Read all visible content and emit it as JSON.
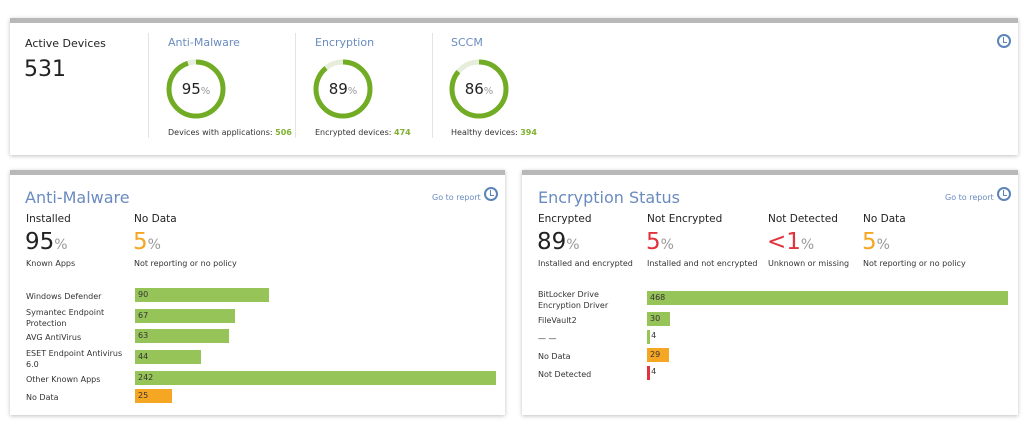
{
  "summary": {
    "active_devices": {
      "label": "Active Devices",
      "value": "531"
    },
    "gauges": [
      {
        "title": "Anti-Malware",
        "value": 95,
        "unit": "%",
        "caption": "Devices with applications:",
        "count": "506"
      },
      {
        "title": "Encryption",
        "value": 89,
        "unit": "%",
        "caption": "Encrypted devices:",
        "count": "474"
      },
      {
        "title": "SCCM",
        "value": 86,
        "unit": "%",
        "caption": "Healthy devices:",
        "count": "394"
      }
    ],
    "clock_icon": "clock-icon"
  },
  "anti_malware": {
    "title": "Anti-Malware",
    "go_to_report": "Go to report",
    "stats": [
      {
        "label": "Installed",
        "value": "95",
        "unit": "%",
        "caption": "Known Apps",
        "color": "#222222"
      },
      {
        "label": "No Data",
        "value": "5",
        "unit": "%",
        "caption": "Not reporting or no policy",
        "color": "#f5a623"
      }
    ],
    "bars": [
      {
        "label": "Windows Defender",
        "value": 90,
        "color": "#97c459"
      },
      {
        "label": "Symantec Endpoint Protection",
        "value": 67,
        "color": "#97c459"
      },
      {
        "label": "AVG AntiVirus",
        "value": 63,
        "color": "#97c459"
      },
      {
        "label": "ESET Endpoint Antivirus 6.0",
        "value": 44,
        "color": "#97c459"
      },
      {
        "label": "Other Known Apps",
        "value": 242,
        "color": "#97c459"
      },
      {
        "label": "No Data",
        "value": 25,
        "color": "#f5a623"
      }
    ]
  },
  "encryption": {
    "title": "Encryption Status",
    "go_to_report": "Go to report",
    "stats": [
      {
        "label": "Encrypted",
        "value": "89",
        "unit": "%",
        "caption": "Installed and encrypted",
        "color": "#222222"
      },
      {
        "label": "Not Encrypted",
        "value": "5",
        "unit": "%",
        "caption": "Installed and not encrypted",
        "color": "#e0333b"
      },
      {
        "label": "Not Detected",
        "value": "<1",
        "unit": "%",
        "caption": "Unknown or missing",
        "color": "#e0333b"
      },
      {
        "label": "No Data",
        "value": "5",
        "unit": "%",
        "caption": "Not reporting or no policy",
        "color": "#f5a623"
      }
    ],
    "bars": [
      {
        "label": "BitLocker Drive Encryption Driver",
        "value": 468,
        "color": "#97c459"
      },
      {
        "label": "FileVault2",
        "value": 30,
        "color": "#97c459"
      },
      {
        "label": "— —",
        "value": 4,
        "color": "#97c459"
      },
      {
        "label": "No Data",
        "value": 29,
        "color": "#f5a623"
      },
      {
        "label": "Not Detected",
        "value": 4,
        "color": "#e0333b"
      }
    ]
  }
}
